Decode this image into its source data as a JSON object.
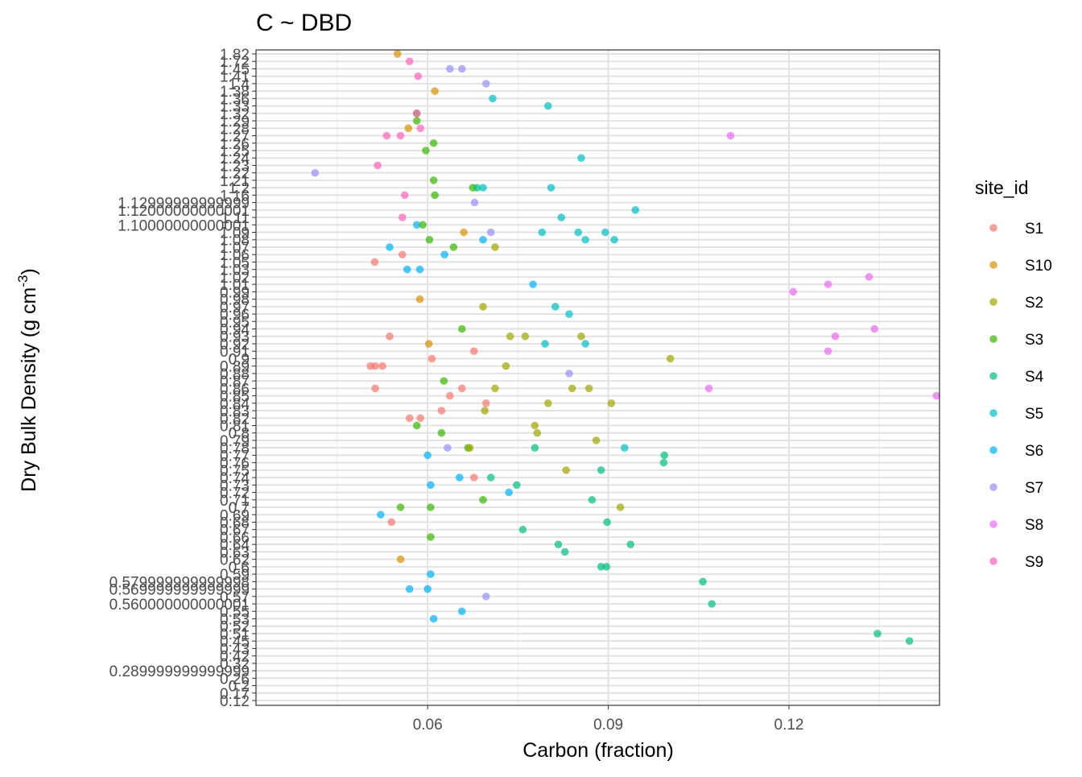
{
  "chart_data": {
    "type": "scatter",
    "title": "C ~ DBD",
    "xlabel": "Carbon (fraction)",
    "ylabel_main": "Dry Bulk Density (g cm",
    "ylabel_sup": "-3",
    "ylabel_close": ")",
    "y_axis": "categorical (discrete levels, evenly spaced, ascending from bottom)",
    "xlim": [
      0.0315,
      0.145
    ],
    "x_ticks": [
      0.06,
      0.09,
      0.12
    ],
    "x_tick_labels": [
      "0.06",
      "0.09",
      "0.12"
    ],
    "grid": true,
    "legend_position": "right",
    "legend_title": "site_id",
    "series": [
      {
        "name": "S1",
        "color": "#F8766D"
      },
      {
        "name": "S10",
        "color": "#D89000"
      },
      {
        "name": "S2",
        "color": "#A3A500"
      },
      {
        "name": "S3",
        "color": "#39B600"
      },
      {
        "name": "S4",
        "color": "#00BF7D"
      },
      {
        "name": "S5",
        "color": "#00BFC4"
      },
      {
        "name": "S6",
        "color": "#00B0F6"
      },
      {
        "name": "S7",
        "color": "#9590FF"
      },
      {
        "name": "S8",
        "color": "#E76BF3"
      },
      {
        "name": "S9",
        "color": "#FF62BC"
      }
    ],
    "y_categories": [
      "0.12",
      "0.17",
      "0.2",
      "0.26",
      "0.289999999999999",
      "0.32",
      "0.42",
      "0.43",
      "0.45",
      "0.51",
      "0.52",
      "0.53",
      "0.55",
      "0.560000000000001",
      "0.57",
      "0.569999999999999",
      "0.579999999999998",
      "0.59",
      "0.6",
      "0.62",
      "0.63",
      "0.64",
      "0.66",
      "0.67",
      "0.68",
      "0.69",
      "0.7",
      "0.71",
      "0.72",
      "0.73",
      "0.74",
      "0.75",
      "0.76",
      "0.77",
      "0.78",
      "0.79",
      "0.8",
      "0.81",
      "0.82",
      "0.83",
      "0.84",
      "0.85",
      "0.86",
      "0.87",
      "0.88",
      "0.89",
      "0.9",
      "0.91",
      "0.92",
      "0.93",
      "0.94",
      "0.95",
      "0.96",
      "0.97",
      "0.98",
      "0.99",
      "1.01",
      "1.02",
      "1.03",
      "1.05",
      "1.06",
      "1.07",
      "1.08",
      "1.09",
      "1.10000000000001",
      "1.11",
      "1.12000000000001",
      "1.12999999999999",
      "1.16",
      "1.2",
      "1.21",
      "1.22",
      "1.23",
      "1.24",
      "1.25",
      "1.26",
      "1.27",
      "1.28",
      "1.29",
      "1.32",
      "1.33",
      "1.36",
      "1.38",
      "1.4",
      "1.41",
      "1.45",
      "1.72",
      "1.82"
    ],
    "points": [
      {
        "s": "S10",
        "x": 0.055,
        "y": "1.82"
      },
      {
        "s": "S9",
        "x": 0.057,
        "y": "1.72"
      },
      {
        "s": "S7",
        "x": 0.0637,
        "y": "1.45"
      },
      {
        "s": "S7",
        "x": 0.0657,
        "y": "1.45"
      },
      {
        "s": "S9",
        "x": 0.0584,
        "y": "1.41"
      },
      {
        "s": "S7",
        "x": 0.0697,
        "y": "1.4"
      },
      {
        "s": "S10",
        "x": 0.0612,
        "y": "1.38"
      },
      {
        "s": "S5",
        "x": 0.0708,
        "y": "1.36"
      },
      {
        "s": "S5",
        "x": 0.08,
        "y": "1.33"
      },
      {
        "s": "S3",
        "x": 0.0582,
        "y": "1.32"
      },
      {
        "s": "S9",
        "x": 0.0582,
        "y": "1.32"
      },
      {
        "s": "S3",
        "x": 0.0582,
        "y": "1.29"
      },
      {
        "s": "S10",
        "x": 0.0568,
        "y": "1.28"
      },
      {
        "s": "S9",
        "x": 0.0588,
        "y": "1.28"
      },
      {
        "s": "S9",
        "x": 0.0532,
        "y": "1.27"
      },
      {
        "s": "S9",
        "x": 0.0555,
        "y": "1.27"
      },
      {
        "s": "S8",
        "x": 0.1103,
        "y": "1.27"
      },
      {
        "s": "S3",
        "x": 0.061,
        "y": "1.26"
      },
      {
        "s": "S3",
        "x": 0.0597,
        "y": "1.25"
      },
      {
        "s": "S5",
        "x": 0.0855,
        "y": "1.24"
      },
      {
        "s": "S9",
        "x": 0.0517,
        "y": "1.23"
      },
      {
        "s": "S7",
        "x": 0.0413,
        "y": "1.22"
      },
      {
        "s": "S3",
        "x": 0.061,
        "y": "1.21"
      },
      {
        "s": "S3",
        "x": 0.0675,
        "y": "1.2"
      },
      {
        "s": "S4",
        "x": 0.0682,
        "y": "1.2"
      },
      {
        "s": "S5",
        "x": 0.0692,
        "y": "1.2"
      },
      {
        "s": "S5",
        "x": 0.0805,
        "y": "1.2"
      },
      {
        "s": "S3",
        "x": 0.0612,
        "y": "1.16"
      },
      {
        "s": "S9",
        "x": 0.0562,
        "y": "1.16"
      },
      {
        "s": "S7",
        "x": 0.0678,
        "y": "1.12999999999999"
      },
      {
        "s": "S5",
        "x": 0.0945,
        "y": "1.12000000000001"
      },
      {
        "s": "S5",
        "x": 0.0822,
        "y": "1.11"
      },
      {
        "s": "S9",
        "x": 0.0558,
        "y": "1.11"
      },
      {
        "s": "S6",
        "x": 0.0582,
        "y": "1.10000000000001"
      },
      {
        "s": "S3",
        "x": 0.0592,
        "y": "1.10000000000001"
      },
      {
        "s": "S10",
        "x": 0.066,
        "y": "1.09"
      },
      {
        "s": "S7",
        "x": 0.0705,
        "y": "1.09"
      },
      {
        "s": "S5",
        "x": 0.079,
        "y": "1.09"
      },
      {
        "s": "S5",
        "x": 0.085,
        "y": "1.09"
      },
      {
        "s": "S5",
        "x": 0.0895,
        "y": "1.09"
      },
      {
        "s": "S3",
        "x": 0.0603,
        "y": "1.08"
      },
      {
        "s": "S6",
        "x": 0.0692,
        "y": "1.08"
      },
      {
        "s": "S5",
        "x": 0.0862,
        "y": "1.08"
      },
      {
        "s": "S5",
        "x": 0.091,
        "y": "1.08"
      },
      {
        "s": "S6",
        "x": 0.0537,
        "y": "1.07"
      },
      {
        "s": "S3",
        "x": 0.0643,
        "y": "1.07"
      },
      {
        "s": "S2",
        "x": 0.0712,
        "y": "1.07"
      },
      {
        "s": "S1",
        "x": 0.0558,
        "y": "1.06"
      },
      {
        "s": "S6",
        "x": 0.0628,
        "y": "1.06"
      },
      {
        "s": "S1",
        "x": 0.0512,
        "y": "1.05"
      },
      {
        "s": "S6",
        "x": 0.0566,
        "y": "1.03"
      },
      {
        "s": "S6",
        "x": 0.0587,
        "y": "1.03"
      },
      {
        "s": "S8",
        "x": 0.1333,
        "y": "1.02"
      },
      {
        "s": "S8",
        "x": 0.1265,
        "y": "1.01"
      },
      {
        "s": "S6",
        "x": 0.0775,
        "y": "1.01"
      },
      {
        "s": "S8",
        "x": 0.1207,
        "y": "0.99"
      },
      {
        "s": "S10",
        "x": 0.0587,
        "y": "0.98"
      },
      {
        "s": "S2",
        "x": 0.0692,
        "y": "0.97"
      },
      {
        "s": "S5",
        "x": 0.0812,
        "y": "0.97"
      },
      {
        "s": "S5",
        "x": 0.0835,
        "y": "0.96"
      },
      {
        "s": "S8",
        "x": 0.1342,
        "y": "0.94"
      },
      {
        "s": "S3",
        "x": 0.0657,
        "y": "0.94"
      },
      {
        "s": "S8",
        "x": 0.1277,
        "y": "0.93"
      },
      {
        "s": "S1",
        "x": 0.0537,
        "y": "0.93"
      },
      {
        "s": "S2",
        "x": 0.0737,
        "y": "0.93"
      },
      {
        "s": "S2",
        "x": 0.0762,
        "y": "0.93"
      },
      {
        "s": "S2",
        "x": 0.0855,
        "y": "0.93"
      },
      {
        "s": "S10",
        "x": 0.0602,
        "y": "0.92"
      },
      {
        "s": "S5",
        "x": 0.0795,
        "y": "0.92"
      },
      {
        "s": "S5",
        "x": 0.0862,
        "y": "0.92"
      },
      {
        "s": "S1",
        "x": 0.0677,
        "y": "0.91"
      },
      {
        "s": "S8",
        "x": 0.1265,
        "y": "0.91"
      },
      {
        "s": "S1",
        "x": 0.0607,
        "y": "0.9"
      },
      {
        "s": "S2",
        "x": 0.1003,
        "y": "0.9"
      },
      {
        "s": "S1",
        "x": 0.0505,
        "y": "0.89"
      },
      {
        "s": "S1",
        "x": 0.0513,
        "y": "0.89"
      },
      {
        "s": "S1",
        "x": 0.0525,
        "y": "0.89"
      },
      {
        "s": "S2",
        "x": 0.073,
        "y": "0.89"
      },
      {
        "s": "S7",
        "x": 0.0835,
        "y": "0.88"
      },
      {
        "s": "S3",
        "x": 0.0627,
        "y": "0.87"
      },
      {
        "s": "S1",
        "x": 0.0513,
        "y": "0.86"
      },
      {
        "s": "S1",
        "x": 0.0657,
        "y": "0.86"
      },
      {
        "s": "S2",
        "x": 0.0712,
        "y": "0.86"
      },
      {
        "s": "S2",
        "x": 0.084,
        "y": "0.86"
      },
      {
        "s": "S2",
        "x": 0.0868,
        "y": "0.86"
      },
      {
        "s": "S8",
        "x": 0.1067,
        "y": "0.86"
      },
      {
        "s": "S1",
        "x": 0.0637,
        "y": "0.85"
      },
      {
        "s": "S8",
        "x": 0.1445,
        "y": "0.85"
      },
      {
        "s": "S1",
        "x": 0.0697,
        "y": "0.84"
      },
      {
        "s": "S2",
        "x": 0.08,
        "y": "0.84"
      },
      {
        "s": "S2",
        "x": 0.0905,
        "y": "0.84"
      },
      {
        "s": "S1",
        "x": 0.0623,
        "y": "0.83"
      },
      {
        "s": "S2",
        "x": 0.0695,
        "y": "0.83"
      },
      {
        "s": "S1",
        "x": 0.057,
        "y": "0.82"
      },
      {
        "s": "S1",
        "x": 0.0588,
        "y": "0.82"
      },
      {
        "s": "S3",
        "x": 0.0582,
        "y": "0.81"
      },
      {
        "s": "S2",
        "x": 0.0778,
        "y": "0.81"
      },
      {
        "s": "S3",
        "x": 0.0623,
        "y": "0.8"
      },
      {
        "s": "S2",
        "x": 0.0782,
        "y": "0.8"
      },
      {
        "s": "S2",
        "x": 0.088,
        "y": "0.79"
      },
      {
        "s": "S7",
        "x": 0.0633,
        "y": "0.78"
      },
      {
        "s": "S3",
        "x": 0.0667,
        "y": "0.78"
      },
      {
        "s": "S2",
        "x": 0.067,
        "y": "0.78"
      },
      {
        "s": "S4",
        "x": 0.0778,
        "y": "0.78"
      },
      {
        "s": "S5",
        "x": 0.0927,
        "y": "0.78"
      },
      {
        "s": "S6",
        "x": 0.06,
        "y": "0.77"
      },
      {
        "s": "S4",
        "x": 0.0993,
        "y": "0.77"
      },
      {
        "s": "S4",
        "x": 0.0992,
        "y": "0.76"
      },
      {
        "s": "S2",
        "x": 0.083,
        "y": "0.75"
      },
      {
        "s": "S4",
        "x": 0.0888,
        "y": "0.75"
      },
      {
        "s": "S6",
        "x": 0.0653,
        "y": "0.74"
      },
      {
        "s": "S4",
        "x": 0.0705,
        "y": "0.74"
      },
      {
        "s": "S1",
        "x": 0.0677,
        "y": "0.74"
      },
      {
        "s": "S6",
        "x": 0.0605,
        "y": "0.73"
      },
      {
        "s": "S4",
        "x": 0.0748,
        "y": "0.73"
      },
      {
        "s": "S6",
        "x": 0.0735,
        "y": "0.72"
      },
      {
        "s": "S3",
        "x": 0.0692,
        "y": "0.71"
      },
      {
        "s": "S4",
        "x": 0.0873,
        "y": "0.71"
      },
      {
        "s": "S3",
        "x": 0.0555,
        "y": "0.7"
      },
      {
        "s": "S3",
        "x": 0.0605,
        "y": "0.7"
      },
      {
        "s": "S2",
        "x": 0.092,
        "y": "0.7"
      },
      {
        "s": "S6",
        "x": 0.0522,
        "y": "0.69"
      },
      {
        "s": "S1",
        "x": 0.054,
        "y": "0.68"
      },
      {
        "s": "S4",
        "x": 0.0898,
        "y": "0.68"
      },
      {
        "s": "S4",
        "x": 0.0758,
        "y": "0.67"
      },
      {
        "s": "S3",
        "x": 0.0605,
        "y": "0.66"
      },
      {
        "s": "S4",
        "x": 0.0937,
        "y": "0.64"
      },
      {
        "s": "S4",
        "x": 0.0817,
        "y": "0.64"
      },
      {
        "s": "S4",
        "x": 0.0828,
        "y": "0.63"
      },
      {
        "s": "S10",
        "x": 0.0555,
        "y": "0.62"
      },
      {
        "s": "S4",
        "x": 0.0888,
        "y": "0.6"
      },
      {
        "s": "S4",
        "x": 0.0897,
        "y": "0.6"
      },
      {
        "s": "S6",
        "x": 0.0605,
        "y": "0.59"
      },
      {
        "s": "S4",
        "x": 0.1057,
        "y": "0.579999999999998"
      },
      {
        "s": "S6",
        "x": 0.057,
        "y": "0.569999999999999"
      },
      {
        "s": "S6",
        "x": 0.06,
        "y": "0.569999999999999"
      },
      {
        "s": "S7",
        "x": 0.0697,
        "y": "0.57"
      },
      {
        "s": "S4",
        "x": 0.1072,
        "y": "0.560000000000001"
      },
      {
        "s": "S6",
        "x": 0.0657,
        "y": "0.55"
      },
      {
        "s": "S6",
        "x": 0.061,
        "y": "0.53"
      },
      {
        "s": "S4",
        "x": 0.1347,
        "y": "0.51"
      },
      {
        "s": "S4",
        "x": 0.14,
        "y": "0.45"
      }
    ]
  }
}
